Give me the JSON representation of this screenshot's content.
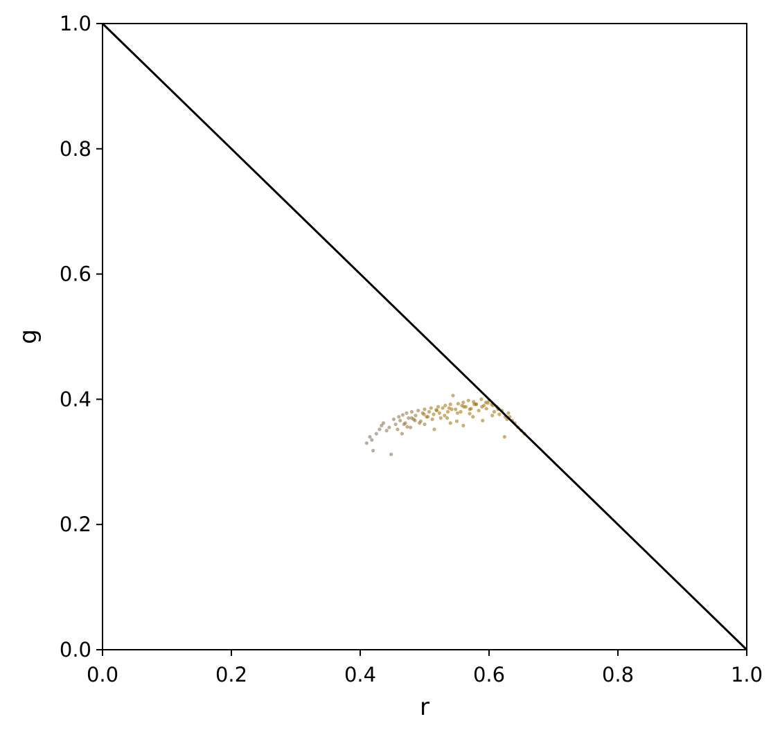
{
  "chart_data": {
    "type": "scatter",
    "title": "",
    "xlabel": "r",
    "ylabel": "g",
    "xlim": [
      0.0,
      1.0
    ],
    "ylim": [
      0.0,
      1.0
    ],
    "x_ticks": [
      "0.0",
      "0.2",
      "0.4",
      "0.6",
      "0.8",
      "1.0"
    ],
    "y_ticks": [
      "0.0",
      "0.2",
      "0.4",
      "0.6",
      "0.8",
      "1.0"
    ],
    "grid": false,
    "legend": "none",
    "reference_line": {
      "x": [
        0.0,
        1.0
      ],
      "y": [
        1.0,
        0.0
      ],
      "color": "#000000"
    },
    "point_color_range": [
      "#7a6a60",
      "#a46e00"
    ],
    "series": [
      {
        "x": [
          0.41,
          0.415,
          0.42,
          0.425,
          0.43,
          0.418,
          0.433,
          0.441,
          0.448,
          0.436,
          0.445,
          0.452,
          0.455,
          0.46,
          0.458,
          0.462,
          0.466,
          0.47,
          0.472,
          0.475,
          0.478,
          0.48,
          0.483,
          0.486,
          0.49,
          0.494,
          0.497,
          0.5,
          0.503,
          0.507,
          0.51,
          0.514,
          0.518,
          0.521,
          0.525,
          0.528,
          0.532,
          0.536,
          0.54,
          0.544,
          0.548,
          0.552,
          0.556,
          0.56,
          0.564,
          0.568,
          0.572,
          0.576,
          0.58,
          0.584,
          0.588,
          0.592,
          0.596,
          0.6,
          0.604,
          0.608,
          0.612,
          0.616,
          0.62,
          0.624,
          0.628,
          0.632,
          0.636,
          0.64,
          0.645,
          0.65,
          0.655,
          0.468,
          0.485,
          0.505,
          0.523,
          0.542,
          0.561,
          0.58,
          0.598,
          0.615,
          0.473,
          0.492,
          0.512,
          0.531,
          0.551,
          0.57,
          0.589,
          0.606,
          0.625,
          0.48,
          0.499,
          0.519,
          0.538,
          0.558,
          0.577,
          0.595,
          0.614,
          0.63,
          0.465,
          0.5,
          0.535,
          0.57,
          0.605,
          0.54,
          0.56,
          0.59,
          0.515,
          0.55,
          0.575
        ],
        "y": [
          0.33,
          0.34,
          0.318,
          0.345,
          0.352,
          0.335,
          0.358,
          0.35,
          0.312,
          0.362,
          0.355,
          0.368,
          0.36,
          0.372,
          0.352,
          0.366,
          0.375,
          0.362,
          0.378,
          0.37,
          0.355,
          0.38,
          0.368,
          0.374,
          0.382,
          0.365,
          0.378,
          0.384,
          0.372,
          0.38,
          0.386,
          0.376,
          0.383,
          0.388,
          0.37,
          0.386,
          0.39,
          0.38,
          0.392,
          0.406,
          0.384,
          0.393,
          0.38,
          0.395,
          0.388,
          0.398,
          0.385,
          0.396,
          0.392,
          0.382,
          0.4,
          0.39,
          0.385,
          0.398,
          0.392,
          0.38,
          0.388,
          0.376,
          0.382,
          0.34,
          0.368,
          0.372,
          0.366,
          0.362,
          0.355,
          0.35,
          0.345,
          0.36,
          0.366,
          0.372,
          0.378,
          0.384,
          0.388,
          0.392,
          0.394,
          0.385,
          0.356,
          0.362,
          0.368,
          0.374,
          0.378,
          0.384,
          0.388,
          0.39,
          0.372,
          0.37,
          0.376,
          0.382,
          0.386,
          0.39,
          0.392,
          0.395,
          0.384,
          0.378,
          0.345,
          0.36,
          0.37,
          0.377,
          0.374,
          0.362,
          0.358,
          0.366,
          0.352,
          0.365,
          0.372
        ]
      }
    ]
  }
}
